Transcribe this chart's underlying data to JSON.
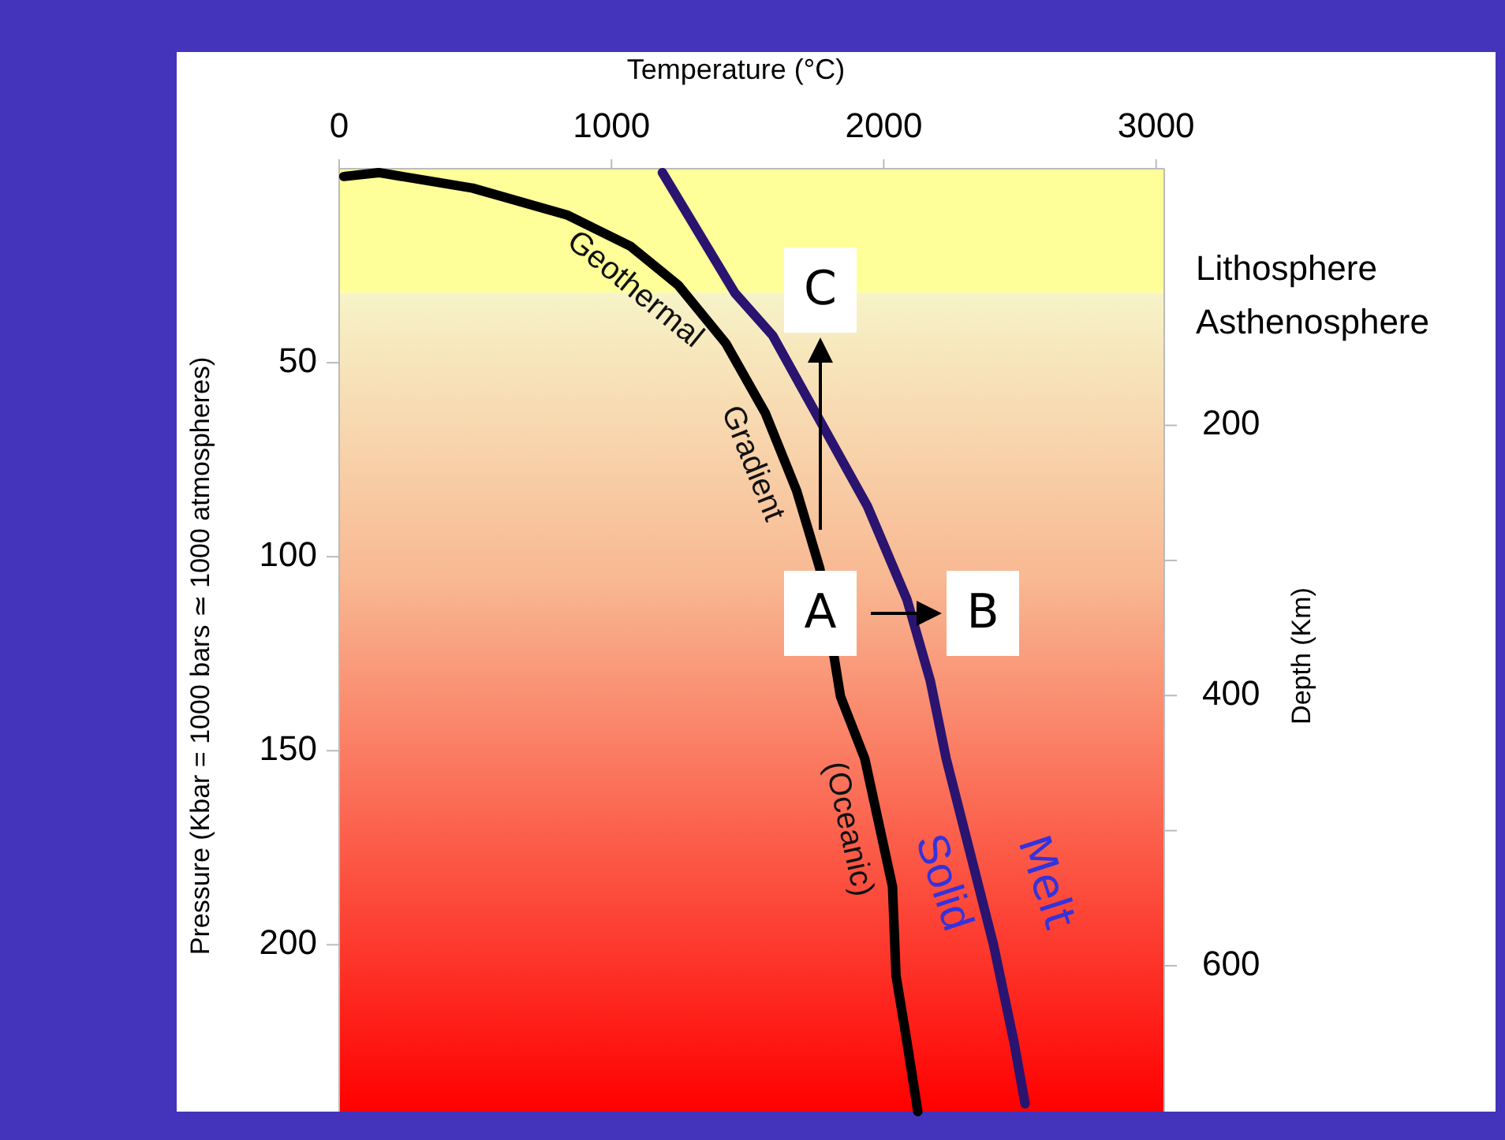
{
  "chart_data": {
    "type": "line",
    "xlabel": "Temperature (°C)",
    "ylabel": "Pressure (Kbar = 1000 bars ≃ 1000 atmospheres)",
    "y2label": "Depth (Km)",
    "xlim": [
      0,
      3030
    ],
    "xticks": [
      0,
      1000,
      2000,
      3000
    ],
    "ylim": [
      243,
      0
    ],
    "yticks": [
      50,
      100,
      150,
      200
    ],
    "y2lim": [
      708,
      10
    ],
    "y2ticks": [
      200,
      {
        "value": 300,
        "label": null
      },
      400,
      {
        "value": 500,
        "label": null
      },
      600
    ],
    "line_style": "solid",
    "series": [
      {
        "name": "Geothermal Gradient (Oceanic)",
        "color": "#000000",
        "x": [
          17,
          145,
          490,
          840,
          1070,
          1245,
          1420,
          1565,
          1680,
          1765,
          1841,
          1930,
          2032,
          2045,
          2085,
          2125
        ],
        "values": [
          2,
          1,
          5,
          12,
          20,
          30,
          45,
          63,
          83,
          103,
          136,
          152,
          185,
          208,
          225,
          243
        ]
      },
      {
        "color": "#2a1470",
        "x": [
          1187,
          1453,
          1592,
          1766,
          1940,
          2085,
          2171,
          2229,
          2316,
          2403,
          2478,
          2519
        ],
        "values": [
          1,
          32,
          43,
          65,
          87,
          111,
          132,
          152,
          176,
          200,
          225,
          241
        ]
      }
    ],
    "bands": [
      {
        "axis": "y",
        "from": 0,
        "to": 32,
        "label": "Lithosphere",
        "color": "#ffff99"
      },
      {
        "axis": "y",
        "from": 32,
        "to": 243,
        "label": "Asthenosphere",
        "color": "#f7f3c8"
      }
    ],
    "annotations": [
      "Solid",
      "Melt",
      "A",
      "B",
      "C"
    ]
  }
}
